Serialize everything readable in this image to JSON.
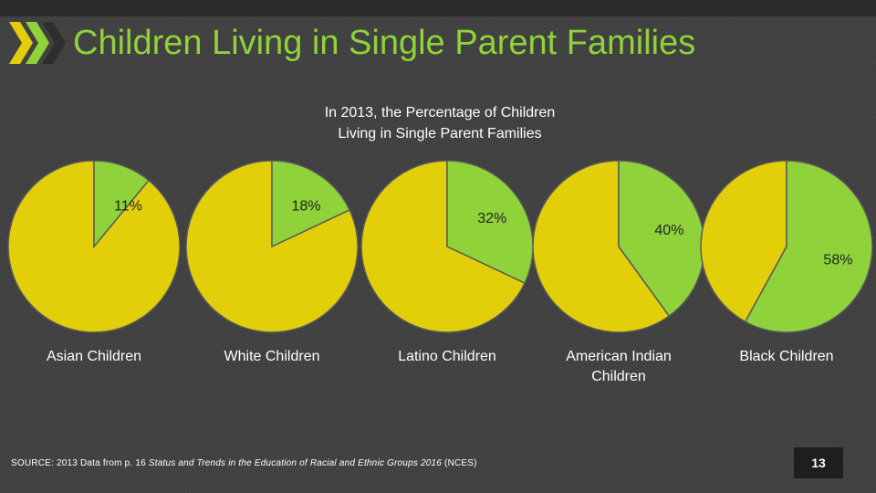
{
  "slide": {
    "title": "Children Living in Single Parent Families",
    "page_number": "13",
    "source": {
      "prefix": "SOURCE: 2013 Data from p. 16 ",
      "italic": "Status and Trends in the Education of Racial and Ethnic Groups 2016",
      "suffix": " (NCES)"
    }
  },
  "colors": {
    "green": "#8fd23a",
    "yellow": "#e2cf0a",
    "stroke": "#5a5a5a"
  },
  "chart_data": {
    "type": "pie",
    "title_lines": [
      "In 2013, the Percentage of Children",
      "Living in Single Parent Families"
    ],
    "series": [
      {
        "category": "Asian Children",
        "label_lines": [
          "Asian Children"
        ],
        "value": 11,
        "value_label": "11%"
      },
      {
        "category": "White Children",
        "label_lines": [
          "White Children"
        ],
        "value": 18,
        "value_label": "18%"
      },
      {
        "category": "Latino Children",
        "label_lines": [
          "Latino Children"
        ],
        "value": 32,
        "value_label": "32%"
      },
      {
        "category": "American Indian Children",
        "label_lines": [
          "American Indian",
          "Children"
        ],
        "value": 40,
        "value_label": "40%"
      },
      {
        "category": "Black Children",
        "label_lines": [
          "Black Children"
        ],
        "value": 58,
        "value_label": "58%"
      }
    ],
    "unit": "%",
    "total": 100
  }
}
